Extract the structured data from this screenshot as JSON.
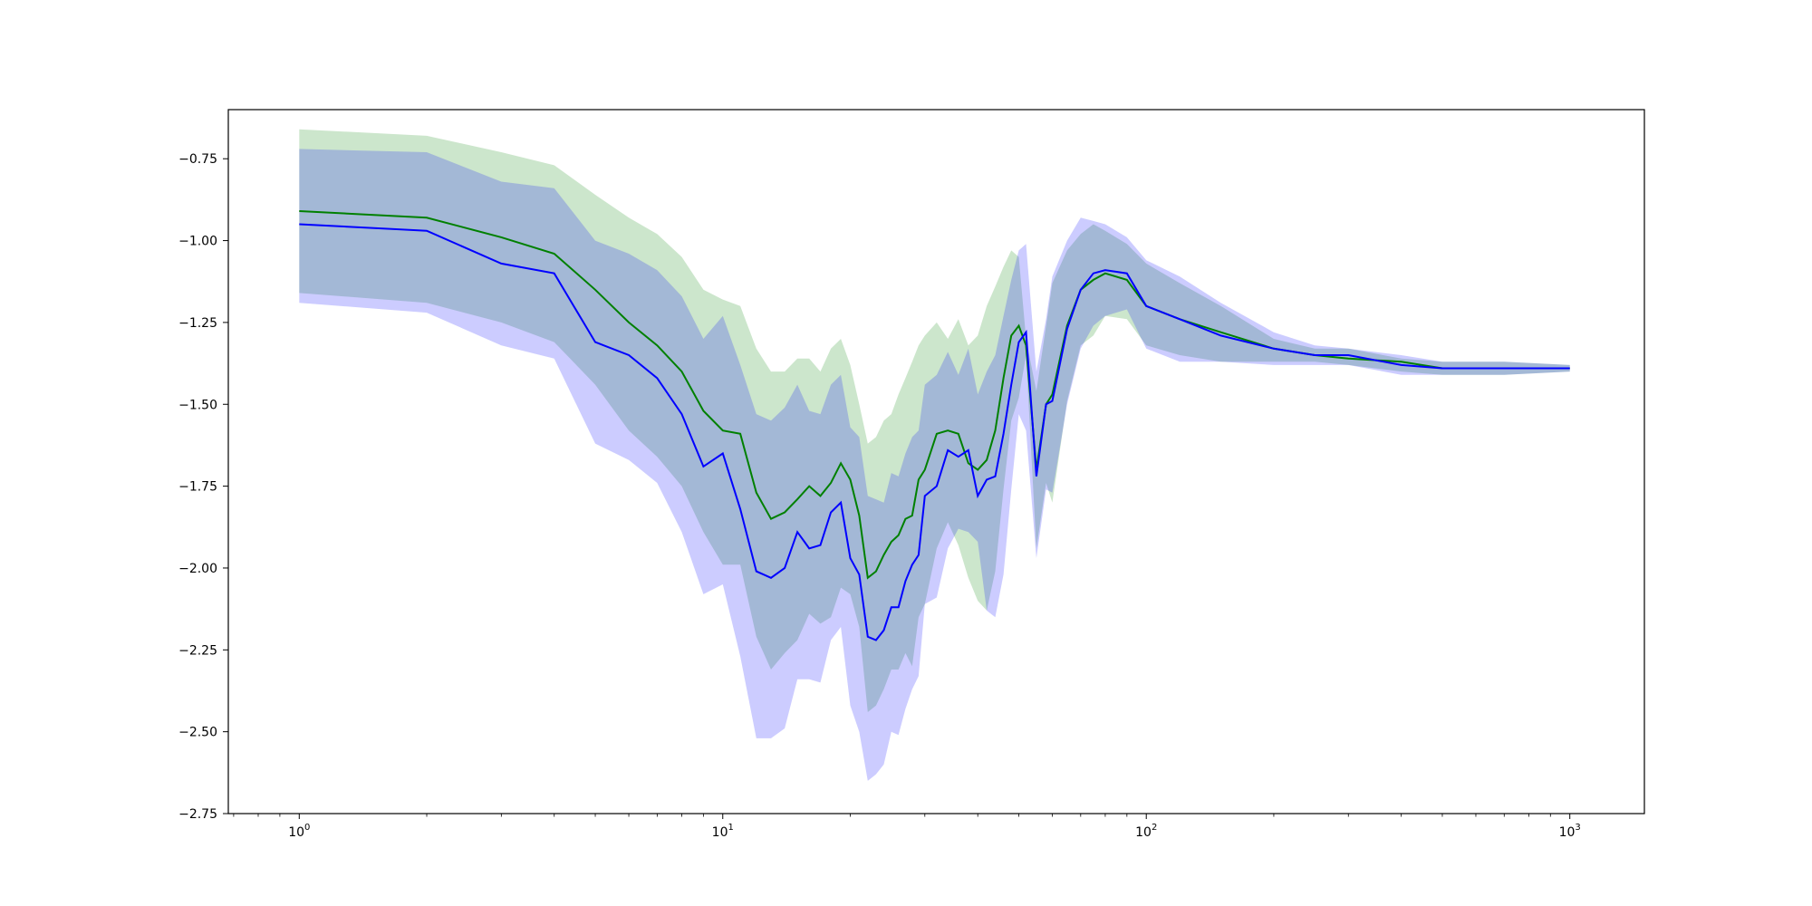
{
  "chart_data": {
    "type": "line",
    "x_scale": "log",
    "xlim": [
      0.68,
      1500
    ],
    "ylim": [
      -2.75,
      -0.6
    ],
    "x_ticks": [
      {
        "value": 1,
        "base": "10",
        "exp": "0"
      },
      {
        "value": 10,
        "base": "10",
        "exp": "1"
      },
      {
        "value": 100,
        "base": "10",
        "exp": "2"
      },
      {
        "value": 1000,
        "base": "10",
        "exp": "3"
      }
    ],
    "y_ticks": [
      {
        "value": -0.75,
        "label": "−0.75"
      },
      {
        "value": -1.0,
        "label": "−1.00"
      },
      {
        "value": -1.25,
        "label": "−1.25"
      },
      {
        "value": -1.5,
        "label": "−1.50"
      },
      {
        "value": -1.75,
        "label": "−1.75"
      },
      {
        "value": -2.0,
        "label": "−2.00"
      },
      {
        "value": -2.25,
        "label": "−2.25"
      },
      {
        "value": -2.5,
        "label": "−2.50"
      },
      {
        "value": -2.75,
        "label": "−2.75"
      }
    ],
    "grid": false,
    "series": [
      {
        "color": "#008000",
        "band_color": "#008000",
        "band_opacity": 0.2,
        "x": [
          1,
          2,
          3,
          4,
          5,
          6,
          7,
          8,
          9,
          10,
          11,
          12,
          13,
          14,
          15,
          16,
          17,
          18,
          19,
          20,
          21,
          22,
          23,
          24,
          25,
          26,
          27,
          28,
          29,
          30,
          32,
          34,
          36,
          38,
          40,
          42,
          44,
          46,
          48,
          50,
          52,
          55,
          58,
          60,
          65,
          70,
          75,
          80,
          90,
          100,
          120,
          150,
          200,
          250,
          300,
          400,
          500,
          700,
          1000
        ],
        "y": [
          -0.91,
          -0.93,
          -0.99,
          -1.04,
          -1.15,
          -1.25,
          -1.32,
          -1.4,
          -1.52,
          -1.58,
          -1.59,
          -1.77,
          -1.85,
          -1.83,
          -1.79,
          -1.75,
          -1.78,
          -1.74,
          -1.68,
          -1.73,
          -1.84,
          -2.03,
          -2.01,
          -1.96,
          -1.92,
          -1.9,
          -1.85,
          -1.84,
          -1.73,
          -1.7,
          -1.59,
          -1.58,
          -1.59,
          -1.68,
          -1.7,
          -1.67,
          -1.58,
          -1.42,
          -1.29,
          -1.26,
          -1.32,
          -1.7,
          -1.5,
          -1.47,
          -1.26,
          -1.15,
          -1.12,
          -1.1,
          -1.12,
          -1.2,
          -1.24,
          -1.28,
          -1.33,
          -1.35,
          -1.36,
          -1.37,
          -1.39,
          -1.39,
          -1.39
        ],
        "y_upper": [
          -0.66,
          -0.68,
          -0.73,
          -0.77,
          -0.86,
          -0.93,
          -0.98,
          -1.05,
          -1.15,
          -1.18,
          -1.2,
          -1.33,
          -1.4,
          -1.4,
          -1.36,
          -1.36,
          -1.4,
          -1.33,
          -1.3,
          -1.38,
          -1.5,
          -1.62,
          -1.6,
          -1.55,
          -1.53,
          -1.47,
          -1.42,
          -1.37,
          -1.32,
          -1.29,
          -1.25,
          -1.3,
          -1.24,
          -1.32,
          -1.29,
          -1.2,
          -1.14,
          -1.08,
          -1.03,
          -1.05,
          -1.3,
          -1.46,
          -1.26,
          -1.13,
          -1.03,
          -0.98,
          -0.95,
          -0.97,
          -1.01,
          -1.07,
          -1.13,
          -1.2,
          -1.3,
          -1.33,
          -1.33,
          -1.36,
          -1.37,
          -1.37,
          -1.38
        ],
        "y_lower": [
          -1.16,
          -1.19,
          -1.25,
          -1.31,
          -1.44,
          -1.58,
          -1.66,
          -1.75,
          -1.89,
          -1.99,
          -1.99,
          -2.21,
          -2.31,
          -2.26,
          -2.22,
          -2.14,
          -2.17,
          -2.15,
          -2.06,
          -2.08,
          -2.18,
          -2.44,
          -2.42,
          -2.37,
          -2.31,
          -2.31,
          -2.26,
          -2.3,
          -2.15,
          -2.11,
          -1.94,
          -1.86,
          -1.93,
          -2.03,
          -2.1,
          -2.13,
          -2.01,
          -1.76,
          -1.55,
          -1.48,
          -1.35,
          -1.94,
          -1.74,
          -1.8,
          -1.49,
          -1.32,
          -1.29,
          -1.23,
          -1.24,
          -1.32,
          -1.35,
          -1.37,
          -1.37,
          -1.37,
          -1.38,
          -1.4,
          -1.41,
          -1.41,
          -1.4
        ]
      },
      {
        "color": "#0000ff",
        "band_color": "#0000ff",
        "band_opacity": 0.2,
        "x": [
          1,
          2,
          3,
          4,
          5,
          6,
          7,
          8,
          9,
          10,
          11,
          12,
          13,
          14,
          15,
          16,
          17,
          18,
          19,
          20,
          21,
          22,
          23,
          24,
          25,
          26,
          27,
          28,
          29,
          30,
          32,
          34,
          36,
          38,
          40,
          42,
          44,
          46,
          48,
          50,
          52,
          55,
          58,
          60,
          65,
          70,
          75,
          80,
          90,
          100,
          120,
          150,
          200,
          250,
          300,
          400,
          500,
          700,
          1000
        ],
        "y": [
          -0.95,
          -0.97,
          -1.07,
          -1.1,
          -1.31,
          -1.35,
          -1.42,
          -1.53,
          -1.69,
          -1.65,
          -1.82,
          -2.01,
          -2.03,
          -2.0,
          -1.89,
          -1.94,
          -1.93,
          -1.83,
          -1.8,
          -1.97,
          -2.02,
          -2.21,
          -2.22,
          -2.19,
          -2.12,
          -2.12,
          -2.04,
          -1.99,
          -1.96,
          -1.78,
          -1.75,
          -1.64,
          -1.66,
          -1.64,
          -1.78,
          -1.73,
          -1.72,
          -1.59,
          -1.44,
          -1.31,
          -1.28,
          -1.72,
          -1.5,
          -1.49,
          -1.27,
          -1.15,
          -1.1,
          -1.09,
          -1.1,
          -1.2,
          -1.24,
          -1.29,
          -1.33,
          -1.35,
          -1.35,
          -1.38,
          -1.39,
          -1.39,
          -1.39
        ],
        "y_upper": [
          -0.72,
          -0.73,
          -0.82,
          -0.84,
          -1.0,
          -1.04,
          -1.09,
          -1.17,
          -1.3,
          -1.23,
          -1.38,
          -1.53,
          -1.55,
          -1.51,
          -1.44,
          -1.52,
          -1.53,
          -1.44,
          -1.41,
          -1.57,
          -1.6,
          -1.78,
          -1.79,
          -1.8,
          -1.71,
          -1.72,
          -1.65,
          -1.6,
          -1.58,
          -1.44,
          -1.41,
          -1.34,
          -1.41,
          -1.33,
          -1.47,
          -1.4,
          -1.35,
          -1.23,
          -1.12,
          -1.03,
          -1.01,
          -1.4,
          -1.24,
          -1.11,
          -1.0,
          -0.93,
          -0.94,
          -0.95,
          -0.99,
          -1.06,
          -1.11,
          -1.19,
          -1.28,
          -1.32,
          -1.33,
          -1.35,
          -1.37,
          -1.37,
          -1.38
        ],
        "y_lower": [
          -1.19,
          -1.22,
          -1.32,
          -1.36,
          -1.62,
          -1.67,
          -1.74,
          -1.89,
          -2.08,
          -2.05,
          -2.27,
          -2.52,
          -2.52,
          -2.49,
          -2.34,
          -2.34,
          -2.35,
          -2.22,
          -2.18,
          -2.42,
          -2.5,
          -2.65,
          -2.63,
          -2.6,
          -2.5,
          -2.51,
          -2.43,
          -2.37,
          -2.33,
          -2.11,
          -2.09,
          -1.94,
          -1.88,
          -1.89,
          -1.92,
          -2.13,
          -2.15,
          -2.02,
          -1.76,
          -1.53,
          -1.58,
          -1.97,
          -1.76,
          -1.77,
          -1.5,
          -1.33,
          -1.26,
          -1.23,
          -1.21,
          -1.33,
          -1.37,
          -1.37,
          -1.38,
          -1.38,
          -1.38,
          -1.41,
          -1.41,
          -1.41,
          -1.4
        ]
      }
    ]
  }
}
